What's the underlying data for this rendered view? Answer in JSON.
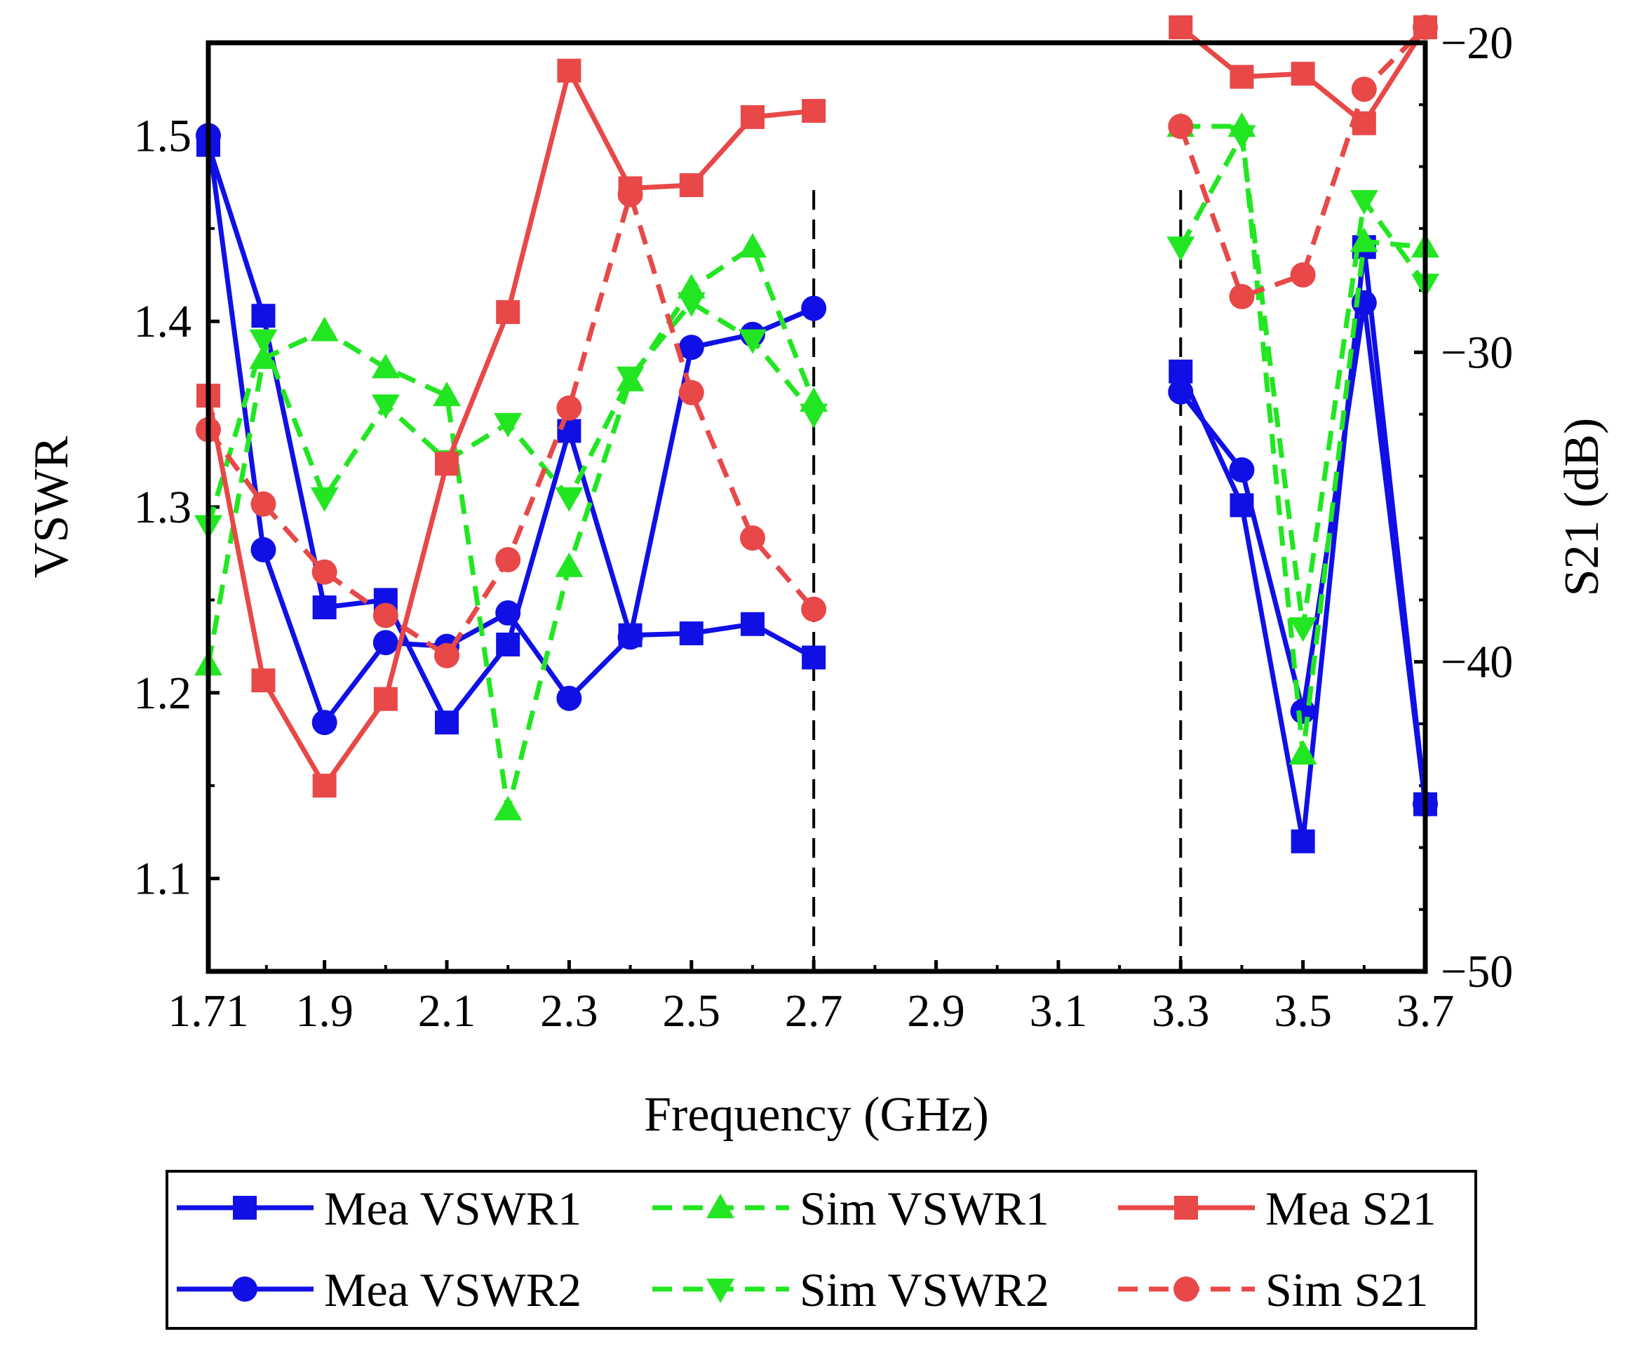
{
  "chart_data": {
    "type": "line",
    "xlabel": "Frequency (GHz)",
    "ylabel": "VSWR",
    "y2label": "S21 (dB)",
    "xlim": [
      1.71,
      3.7
    ],
    "ylim": [
      1.05,
      1.55
    ],
    "y2lim": [
      -50,
      -20
    ],
    "xticks": [
      1.71,
      1.9,
      2.1,
      2.3,
      2.5,
      2.7,
      2.9,
      3.1,
      3.3,
      3.5,
      3.7
    ],
    "xtick_labels": [
      "1.71",
      "1.9",
      "2.1",
      "2.3",
      "2.5",
      "2.7",
      "2.9",
      "3.1",
      "3.3",
      "3.5",
      "3.7"
    ],
    "yticks": [
      1.1,
      1.2,
      1.3,
      1.4,
      1.5
    ],
    "ytick_labels": [
      "1.1",
      "1.2",
      "1.3",
      "1.4",
      "1.5"
    ],
    "y2ticks": [
      -50,
      -40,
      -30,
      -20
    ],
    "y2tick_labels": [
      "−50",
      "−40",
      "−30",
      "−20"
    ],
    "vlines": [
      2.7,
      3.3
    ],
    "legend_position": "bottom",
    "series": [
      {
        "name": "Mea VSWR1",
        "axis": "left",
        "color": "#1010e6",
        "dash": "solid",
        "marker": "square",
        "segments": [
          {
            "x": [
              1.71,
              1.8,
              1.9,
              2.0,
              2.1,
              2.2,
              2.3,
              2.4,
              2.5,
              2.6,
              2.7
            ],
            "y": [
              1.495,
              1.403,
              1.246,
              1.25,
              1.184,
              1.226,
              1.341,
              1.231,
              1.232,
              1.237,
              1.219
            ]
          },
          {
            "x": [
              3.3,
              3.4,
              3.5,
              3.6,
              3.7
            ],
            "y": [
              1.373,
              1.301,
              1.12,
              1.44,
              1.14
            ]
          }
        ]
      },
      {
        "name": "Mea VSWR2",
        "axis": "left",
        "color": "#1010e6",
        "dash": "solid",
        "marker": "circle",
        "segments": [
          {
            "x": [
              1.71,
              1.8,
              1.9,
              2.0,
              2.1,
              2.2,
              2.3,
              2.4,
              2.5,
              2.6,
              2.7
            ],
            "y": [
              1.5,
              1.277,
              1.184,
              1.227,
              1.225,
              1.243,
              1.197,
              1.23,
              1.386,
              1.393,
              1.407
            ]
          },
          {
            "x": [
              3.3,
              3.4,
              3.5,
              3.6,
              3.7
            ],
            "y": [
              1.362,
              1.32,
              1.19,
              1.41,
              1.14
            ]
          }
        ]
      },
      {
        "name": "Sim VSWR1",
        "axis": "left",
        "color": "#22e622",
        "dash": "dashed",
        "marker": "triangle-up",
        "segments": [
          {
            "x": [
              1.71,
              1.8,
              1.9,
              2.0,
              2.1,
              2.2,
              2.3,
              2.4,
              2.5,
              2.6,
              2.7
            ],
            "y": [
              1.215,
              1.38,
              1.395,
              1.375,
              1.36,
              1.137,
              1.268,
              1.368,
              1.418,
              1.44,
              1.357
            ]
          },
          {
            "x": [
              3.3,
              3.4,
              3.5,
              3.6,
              3.7
            ],
            "y": [
              1.505,
              1.505,
              1.167,
              1.443,
              1.44
            ]
          }
        ]
      },
      {
        "name": "Sim VSWR2",
        "axis": "left",
        "color": "#22e622",
        "dash": "dashed",
        "marker": "triangle-down",
        "segments": [
          {
            "x": [
              1.71,
              1.8,
              1.9,
              2.0,
              2.1,
              2.2,
              2.3,
              2.4,
              2.5,
              2.6,
              2.7
            ],
            "y": [
              1.29,
              1.39,
              1.305,
              1.355,
              1.325,
              1.345,
              1.305,
              1.37,
              1.41,
              1.39,
              1.35
            ]
          },
          {
            "x": [
              3.3,
              3.4,
              3.5,
              3.6,
              3.7
            ],
            "y": [
              1.44,
              1.5,
              1.235,
              1.465,
              1.42
            ]
          }
        ]
      },
      {
        "name": "Mea S21",
        "axis": "right",
        "color": "#e84848",
        "dash": "solid",
        "marker": "square",
        "segments": [
          {
            "x": [
              1.71,
              1.8,
              1.9,
              2.0,
              2.1,
              2.2,
              2.3,
              2.4,
              2.5,
              2.6,
              2.7
            ],
            "y": [
              -31.4,
              -40.6,
              -44.0,
              -41.2,
              -33.6,
              -28.7,
              -20.9,
              -24.7,
              -24.6,
              -22.4,
              -22.2
            ]
          },
          {
            "x": [
              3.3,
              3.4,
              3.5,
              3.6,
              3.7
            ],
            "y": [
              -19.5,
              -21.1,
              -21.0,
              -22.6,
              -19.5
            ]
          }
        ]
      },
      {
        "name": "Sim S21",
        "axis": "right",
        "color": "#e84848",
        "dash": "dashed",
        "marker": "circle",
        "segments": [
          {
            "x": [
              1.71,
              1.8,
              1.9,
              2.0,
              2.1,
              2.2,
              2.3,
              2.4,
              2.5,
              2.6,
              2.7
            ],
            "y": [
              -32.5,
              -34.9,
              -37.1,
              -38.5,
              -39.8,
              -36.7,
              -31.8,
              -24.9,
              -31.3,
              -36.0,
              -38.3
            ]
          },
          {
            "x": [
              3.3,
              3.4,
              3.5,
              3.6,
              3.7
            ],
            "y": [
              -22.7,
              -28.2,
              -27.5,
              -21.5,
              -19.5
            ]
          }
        ]
      }
    ]
  }
}
